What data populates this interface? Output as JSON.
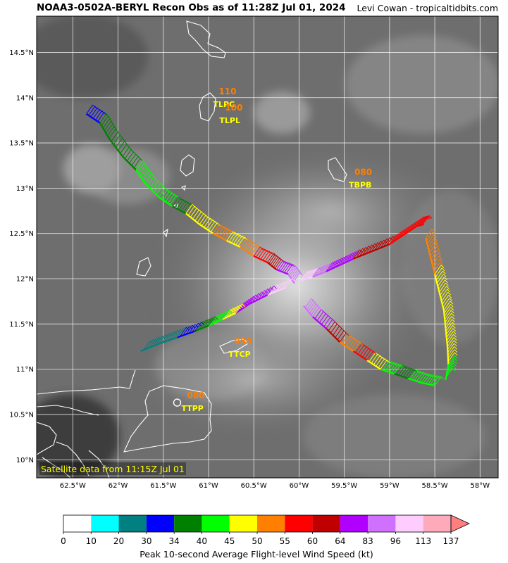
{
  "header": {
    "title": "NOAA3-0502A-BERYL Recon Obs as of 11:28Z Jul 01, 2024",
    "credit": "Levi Cowan - tropicaltidbits.com"
  },
  "map": {
    "lon_range": [
      -62.9,
      -57.8
    ],
    "lat_range": [
      9.8,
      14.9
    ],
    "lat_ticks": [
      {
        "v": 14.5,
        "label": "14.5°N"
      },
      {
        "v": 14.0,
        "label": "14°N"
      },
      {
        "v": 13.5,
        "label": "13.5°N"
      },
      {
        "v": 13.0,
        "label": "13°N"
      },
      {
        "v": 12.5,
        "label": "12.5°N"
      },
      {
        "v": 12.0,
        "label": "12°N"
      },
      {
        "v": 11.5,
        "label": "11.5°N"
      },
      {
        "v": 11.0,
        "label": "11°N"
      },
      {
        "v": 10.5,
        "label": "10.5°N"
      },
      {
        "v": 10.0,
        "label": "10°N"
      }
    ],
    "lon_ticks": [
      {
        "v": -62.5,
        "label": "62.5°W"
      },
      {
        "v": -62.0,
        "label": "62°W"
      },
      {
        "v": -61.5,
        "label": "61.5°W"
      },
      {
        "v": -61.0,
        "label": "61°W"
      },
      {
        "v": -60.5,
        "label": "60.5°W"
      },
      {
        "v": -60.0,
        "label": "60°W"
      },
      {
        "v": -59.5,
        "label": "59.5°W"
      },
      {
        "v": -59.0,
        "label": "59°W"
      },
      {
        "v": -58.5,
        "label": "58.5°W"
      },
      {
        "v": -58.0,
        "label": "58°W"
      }
    ],
    "satellite_note": "Satellite data from 11:15Z Jul 01",
    "stations": [
      {
        "id": "TLPC",
        "value": "110",
        "lon": -60.95,
        "lat": 13.96
      },
      {
        "id": "TLPL",
        "value": "100",
        "lon": -60.88,
        "lat": 13.78
      },
      {
        "id": "TBPB",
        "value": "080",
        "lon": -59.45,
        "lat": 13.07
      },
      {
        "id": "TTCP",
        "value": "080",
        "lon": -60.78,
        "lat": 11.2
      },
      {
        "id": "TTPP",
        "value": "080",
        "lon": -61.3,
        "lat": 10.6
      }
    ],
    "colors": {
      "grid": "#ffffff",
      "coast": "#ffffff",
      "station_id": "#ffff00",
      "station_value": "#ff7f00",
      "note_text": "#ffff00"
    }
  },
  "legend": {
    "title": "Peak 10-second Average Flight-level Wind Speed (kt)",
    "bounds": [
      "0",
      "10",
      "20",
      "30",
      "34",
      "40",
      "45",
      "50",
      "55",
      "60",
      "64",
      "83",
      "96",
      "113",
      "137"
    ],
    "colors": [
      "#ffffff",
      "#00ffff",
      "#008080",
      "#0000ff",
      "#008000",
      "#00ff00",
      "#ffff00",
      "#ff8000",
      "#ff0000",
      "#c00000",
      "#b000ff",
      "#d070ff",
      "#ffccff",
      "#ffaabb"
    ],
    "extend_color": "#ff7f7f"
  },
  "flight": {
    "legs": [
      {
        "name": "inbound-from-northwest",
        "points": [
          [
            -62.35,
            13.82,
            33
          ],
          [
            -62.2,
            13.72,
            37
          ],
          [
            -62.1,
            13.55,
            38
          ],
          [
            -61.95,
            13.35,
            38
          ],
          [
            -61.8,
            13.2,
            40
          ],
          [
            -61.7,
            13.05,
            42
          ],
          [
            -61.55,
            12.9,
            40
          ],
          [
            -61.4,
            12.8,
            39
          ],
          [
            -61.25,
            12.72,
            46
          ],
          [
            -61.1,
            12.6,
            48
          ],
          [
            -60.95,
            12.5,
            50
          ],
          [
            -60.8,
            12.42,
            48
          ],
          [
            -60.65,
            12.35,
            52
          ],
          [
            -60.5,
            12.25,
            57
          ],
          [
            -60.35,
            12.18,
            60
          ],
          [
            -60.25,
            12.1,
            70
          ],
          [
            -60.12,
            12.05,
            88
          ],
          [
            -60.05,
            11.95,
            105
          ]
        ]
      },
      {
        "name": "outbound-to-east",
        "points": [
          [
            -59.98,
            11.98,
            110
          ],
          [
            -59.85,
            12.02,
            90
          ],
          [
            -59.7,
            12.08,
            70
          ],
          [
            -59.55,
            12.15,
            66
          ],
          [
            -59.4,
            12.22,
            62
          ],
          [
            -59.2,
            12.3,
            60
          ],
          [
            -59.0,
            12.38,
            58
          ],
          [
            -58.85,
            12.48,
            57
          ],
          [
            -58.7,
            12.58,
            56
          ],
          [
            -58.62,
            12.6,
            54
          ]
        ]
      },
      {
        "name": "southward-east-side",
        "points": [
          [
            -58.6,
            12.45,
            52
          ],
          [
            -58.55,
            12.25,
            50
          ],
          [
            -58.5,
            12.05,
            48
          ],
          [
            -58.45,
            11.85,
            46
          ],
          [
            -58.4,
            11.65,
            47
          ],
          [
            -58.38,
            11.45,
            46
          ],
          [
            -58.36,
            11.25,
            45
          ],
          [
            -58.35,
            11.05,
            43
          ],
          [
            -58.38,
            10.88,
            42
          ]
        ]
      },
      {
        "name": "westward-south-side",
        "points": [
          [
            -58.5,
            10.82,
            40
          ],
          [
            -58.65,
            10.85,
            41
          ],
          [
            -58.8,
            10.9,
            39
          ],
          [
            -58.95,
            10.95,
            41
          ],
          [
            -59.1,
            11.0,
            46
          ],
          [
            -59.25,
            11.1,
            55
          ],
          [
            -59.4,
            11.2,
            52
          ],
          [
            -59.55,
            11.3,
            60
          ],
          [
            -59.7,
            11.45,
            70
          ],
          [
            -59.85,
            11.58,
            90
          ],
          [
            -59.95,
            11.7,
            100
          ]
        ]
      },
      {
        "name": "outbound-to-southwest",
        "points": [
          [
            -60.15,
            11.9,
            98
          ],
          [
            -60.35,
            11.82,
            80
          ],
          [
            -60.55,
            11.72,
            66
          ],
          [
            -60.7,
            11.62,
            48
          ],
          [
            -60.85,
            11.55,
            42
          ],
          [
            -61.0,
            11.48,
            36
          ],
          [
            -61.15,
            11.42,
            32
          ],
          [
            -61.35,
            11.35,
            25
          ],
          [
            -61.55,
            11.28,
            22
          ],
          [
            -61.75,
            11.2,
            20
          ]
        ]
      }
    ]
  }
}
